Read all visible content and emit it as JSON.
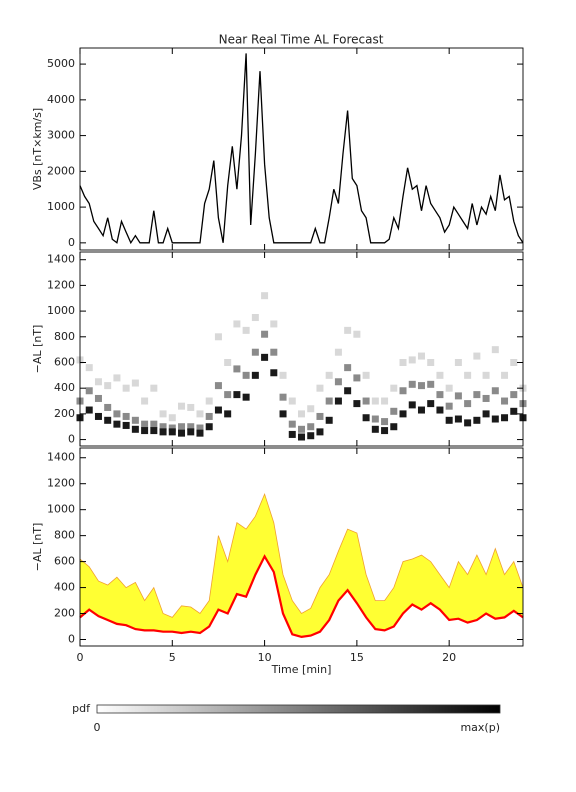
{
  "chart_data": [
    {
      "type": "line",
      "title": "Near Real Time AL Forecast",
      "ylabel": "VBs [nT×km/s]",
      "color": "#000000",
      "x": [
        0,
        0.25,
        0.5,
        0.75,
        1,
        1.25,
        1.5,
        1.75,
        2,
        2.25,
        2.5,
        2.75,
        3,
        3.25,
        3.5,
        3.75,
        4,
        4.25,
        4.5,
        4.75,
        5,
        5.25,
        5.5,
        5.75,
        6,
        6.25,
        6.5,
        6.75,
        7,
        7.25,
        7.5,
        7.75,
        8,
        8.25,
        8.5,
        8.75,
        9,
        9.25,
        9.5,
        9.75,
        10,
        10.25,
        10.5,
        10.75,
        11,
        11.25,
        11.5,
        11.75,
        12,
        12.25,
        12.5,
        12.75,
        13,
        13.25,
        13.5,
        13.75,
        14,
        14.25,
        14.5,
        14.75,
        15,
        15.25,
        15.5,
        15.75,
        16,
        16.25,
        16.5,
        16.75,
        17,
        17.25,
        17.5,
        17.75,
        18,
        18.25,
        18.5,
        18.75,
        19,
        19.25,
        19.5,
        19.75,
        20,
        20.25,
        20.5,
        20.75,
        21,
        21.25,
        21.5,
        21.75,
        22,
        22.25,
        22.5,
        22.75,
        23,
        23.25,
        23.5,
        23.75,
        24
      ],
      "values": [
        1600,
        1300,
        1100,
        600,
        400,
        200,
        700,
        100,
        0,
        600,
        300,
        0,
        200,
        0,
        0,
        0,
        900,
        0,
        0,
        400,
        0,
        0,
        0,
        0,
        0,
        0,
        0,
        1100,
        1500,
        2300,
        700,
        0,
        1600,
        2700,
        1500,
        3000,
        5300,
        500,
        2500,
        4800,
        2200,
        700,
        0,
        0,
        0,
        0,
        0,
        0,
        0,
        0,
        0,
        400,
        0,
        0,
        700,
        1500,
        1100,
        2500,
        3700,
        1800,
        1600,
        900,
        700,
        0,
        0,
        0,
        0,
        100,
        700,
        400,
        1300,
        2100,
        1500,
        1600,
        900,
        1600,
        1100,
        900,
        700,
        300,
        500,
        1000,
        800,
        600,
        400,
        1100,
        500,
        1000,
        800,
        1300,
        900,
        1900,
        1200,
        1300,
        600,
        200,
        0
      ],
      "xlim": [
        0,
        24
      ],
      "xticks": [
        0,
        5,
        10,
        15,
        20
      ],
      "ylim": [
        -200,
        5450
      ],
      "yticks": [
        0,
        1000,
        2000,
        3000,
        4000,
        5000
      ]
    },
    {
      "type": "density",
      "ylabel": "−AL [nT]",
      "x": [
        0,
        0.5,
        1,
        1.5,
        2,
        2.5,
        3,
        3.5,
        4,
        4.5,
        5,
        5.5,
        6,
        6.5,
        7,
        7.5,
        8,
        8.5,
        9,
        9.5,
        10,
        10.5,
        11,
        11.5,
        12,
        12.5,
        13,
        13.5,
        14,
        14.5,
        15,
        15.5,
        16,
        16.5,
        17,
        17.5,
        18,
        18.5,
        19,
        19.5,
        20,
        20.5,
        21,
        21.5,
        22,
        22.5,
        23,
        23.5,
        24
      ],
      "series": [
        {
          "color": "#d8d8d8",
          "values": [
            620,
            560,
            450,
            420,
            480,
            400,
            440,
            300,
            400,
            200,
            170,
            260,
            250,
            200,
            300,
            800,
            600,
            900,
            850,
            950,
            1120,
            900,
            500,
            300,
            200,
            240,
            400,
            500,
            680,
            850,
            820,
            500,
            300,
            300,
            400,
            600,
            620,
            650,
            600,
            500,
            400,
            600,
            500,
            650,
            500,
            700,
            500,
            600,
            400
          ]
        },
        {
          "color": "#8a8a8a",
          "values": [
            300,
            380,
            320,
            250,
            200,
            180,
            150,
            120,
            120,
            100,
            90,
            100,
            100,
            90,
            180,
            420,
            350,
            550,
            500,
            680,
            820,
            680,
            330,
            120,
            80,
            100,
            180,
            300,
            450,
            560,
            480,
            300,
            160,
            140,
            220,
            380,
            430,
            420,
            430,
            350,
            260,
            340,
            280,
            350,
            320,
            380,
            300,
            350,
            280
          ]
        },
        {
          "color": "#1a1a1a",
          "values": [
            170,
            230,
            180,
            150,
            120,
            110,
            80,
            70,
            70,
            60,
            60,
            50,
            60,
            50,
            100,
            230,
            200,
            350,
            330,
            500,
            640,
            520,
            200,
            40,
            20,
            30,
            60,
            150,
            300,
            380,
            280,
            170,
            80,
            70,
            100,
            200,
            270,
            230,
            280,
            230,
            150,
            160,
            130,
            150,
            200,
            160,
            170,
            220,
            170
          ]
        }
      ],
      "xlim": [
        0,
        24
      ],
      "xticks": [
        0,
        5,
        10,
        15,
        20
      ],
      "ylim": [
        -50,
        1460
      ],
      "yticks": [
        0,
        200,
        400,
        600,
        800,
        1000,
        1200,
        1400
      ]
    },
    {
      "type": "band",
      "ylabel": "−AL [nT]",
      "xlabel": "Time [min]",
      "x": [
        0,
        0.5,
        1,
        1.5,
        2,
        2.5,
        3,
        3.5,
        4,
        4.5,
        5,
        5.5,
        6,
        6.5,
        7,
        7.5,
        8,
        8.5,
        9,
        9.5,
        10,
        10.5,
        11,
        11.5,
        12,
        12.5,
        13,
        13.5,
        14,
        14.5,
        15,
        15.5,
        16,
        16.5,
        17,
        17.5,
        18,
        18.5,
        19,
        19.5,
        20,
        20.5,
        21,
        21.5,
        22,
        22.5,
        23,
        23.5,
        24
      ],
      "series": [
        {
          "color": "#ff0000",
          "values": [
            170,
            230,
            180,
            150,
            120,
            110,
            80,
            70,
            70,
            60,
            60,
            50,
            60,
            50,
            100,
            230,
            200,
            350,
            330,
            500,
            640,
            520,
            200,
            40,
            20,
            30,
            60,
            150,
            300,
            380,
            280,
            170,
            80,
            70,
            100,
            200,
            270,
            230,
            280,
            230,
            150,
            160,
            130,
            150,
            200,
            160,
            170,
            220,
            170
          ]
        },
        {
          "color": "#ffff33",
          "edge_color": "#f0a030",
          "values": [
            620,
            560,
            450,
            420,
            480,
            400,
            440,
            300,
            400,
            200,
            170,
            260,
            250,
            200,
            300,
            800,
            600,
            900,
            850,
            950,
            1120,
            900,
            500,
            300,
            200,
            240,
            400,
            500,
            680,
            850,
            820,
            500,
            300,
            300,
            400,
            600,
            620,
            650,
            600,
            500,
            400,
            600,
            500,
            650,
            500,
            700,
            500,
            600,
            400
          ]
        }
      ],
      "xlim": [
        0,
        24
      ],
      "xticks": [
        0,
        5,
        10,
        15,
        20
      ],
      "ylim": [
        -50,
        1475
      ],
      "yticks": [
        0,
        200,
        400,
        600,
        800,
        1000,
        1200,
        1400
      ]
    }
  ],
  "colorbar": {
    "label": "pdf",
    "min_label": "0",
    "max_label": "max(p)"
  }
}
